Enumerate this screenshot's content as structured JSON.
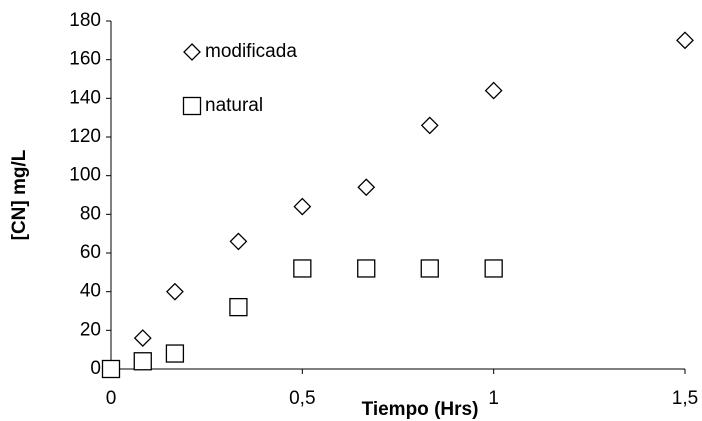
{
  "chart_data": {
    "type": "scatter",
    "xlabel": "Tiempo (Hrs)",
    "ylabel": "[CN] mg/L",
    "xlim": [
      0,
      1.5
    ],
    "ylim": [
      0,
      180
    ],
    "xticks": [
      0,
      {
        "value": 0.5,
        "label": "0,5"
      },
      1,
      {
        "value": 1.5,
        "label": "1,5"
      }
    ],
    "yticks": [
      0,
      20,
      40,
      60,
      80,
      100,
      120,
      140,
      160,
      180
    ],
    "series": [
      {
        "name": "modificada",
        "marker": "diamond",
        "color": "#000000",
        "x": [
          0,
          0.083,
          0.167,
          0.333,
          0.5,
          0.667,
          0.833,
          1,
          1.5
        ],
        "values": [
          0,
          16,
          40,
          66,
          84,
          94,
          126,
          144,
          170
        ]
      },
      {
        "name": "natural",
        "marker": "square",
        "color": "#000000",
        "x": [
          0,
          0.083,
          0.167,
          0.333,
          0.5,
          0.667,
          0.833,
          1
        ],
        "values": [
          0,
          4,
          8,
          32,
          52,
          52,
          52,
          52
        ]
      }
    ]
  }
}
